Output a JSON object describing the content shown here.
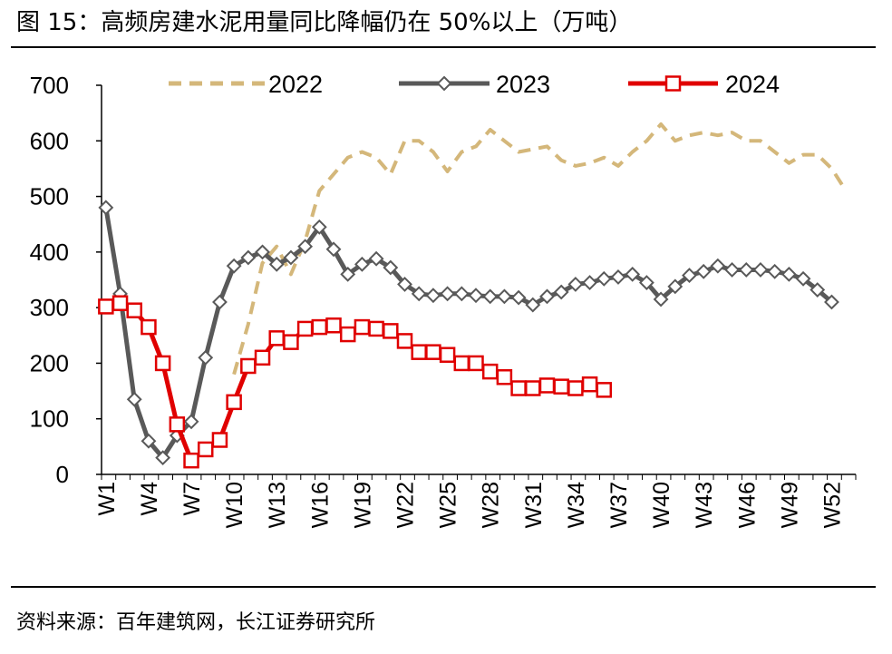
{
  "header": {
    "title": "图 15：高频房建水泥用量同比降幅仍在 50%以上（万吨）"
  },
  "footer": {
    "source": "资料来源：百年建筑网，长江证券研究所"
  },
  "chart_data": {
    "type": "line",
    "title": "高频房建水泥用量同比降幅仍在 50%以上（万吨）",
    "xlabel": "",
    "ylabel": "",
    "ylim": [
      0,
      700
    ],
    "yticks": [
      "0",
      "100",
      "200",
      "300",
      "400",
      "500",
      "600",
      "700"
    ],
    "x": [
      "W1",
      "W2",
      "W3",
      "W4",
      "W5",
      "W6",
      "W7",
      "W8",
      "W9",
      "W10",
      "W11",
      "W12",
      "W13",
      "W14",
      "W15",
      "W16",
      "W17",
      "W18",
      "W19",
      "W20",
      "W21",
      "W22",
      "W23",
      "W24",
      "W25",
      "W26",
      "W27",
      "W28",
      "W29",
      "W30",
      "W31",
      "W32",
      "W33",
      "W34",
      "W35",
      "W36",
      "W37",
      "W38",
      "W39",
      "W40",
      "W41",
      "W42",
      "W43",
      "W44",
      "W45",
      "W46",
      "W47",
      "W48",
      "W49",
      "W50",
      "W51",
      "W52",
      "W53"
    ],
    "xtick_labels": [
      "W1",
      "W4",
      "W7",
      "W10",
      "W13",
      "W16",
      "W19",
      "W22",
      "W25",
      "W28",
      "W31",
      "W34",
      "W37",
      "W40",
      "W43",
      "W46",
      "W49",
      "W52"
    ],
    "legend_position": "top",
    "grid": false,
    "series": [
      {
        "name": "2022",
        "color": "#d4b77a",
        "style": "dashed",
        "marker": "none",
        "values": [
          null,
          null,
          null,
          null,
          null,
          null,
          null,
          null,
          null,
          180,
          270,
          380,
          410,
          360,
          420,
          510,
          540,
          570,
          580,
          570,
          540,
          600,
          600,
          580,
          545,
          580,
          590,
          620,
          600,
          580,
          585,
          590,
          565,
          555,
          560,
          570,
          555,
          580,
          600,
          630,
          600,
          610,
          615,
          610,
          615,
          600,
          600,
          580,
          560,
          575,
          575,
          550,
          510
        ]
      },
      {
        "name": "2023",
        "color": "#595959",
        "style": "solid",
        "marker": "diamond",
        "values": [
          480,
          325,
          135,
          60,
          30,
          70,
          95,
          210,
          310,
          375,
          390,
          400,
          378,
          390,
          410,
          445,
          405,
          360,
          378,
          388,
          372,
          342,
          325,
          322,
          325,
          325,
          322,
          320,
          320,
          318,
          305,
          320,
          328,
          342,
          345,
          352,
          355,
          360,
          345,
          315,
          338,
          358,
          365,
          375,
          368,
          368,
          368,
          365,
          360,
          352,
          332,
          310,
          null
        ]
      },
      {
        "name": "2024",
        "color": "#e00000",
        "style": "solid",
        "marker": "square",
        "values": [
          302,
          308,
          295,
          265,
          200,
          90,
          25,
          45,
          62,
          130,
          195,
          210,
          245,
          238,
          262,
          265,
          268,
          252,
          265,
          262,
          258,
          240,
          220,
          220,
          215,
          200,
          200,
          185,
          175,
          155,
          155,
          160,
          158,
          155,
          162,
          152,
          null,
          null,
          null,
          null,
          null,
          null,
          null,
          null,
          null,
          null,
          null,
          null,
          null,
          null,
          null,
          null,
          null
        ]
      }
    ]
  }
}
